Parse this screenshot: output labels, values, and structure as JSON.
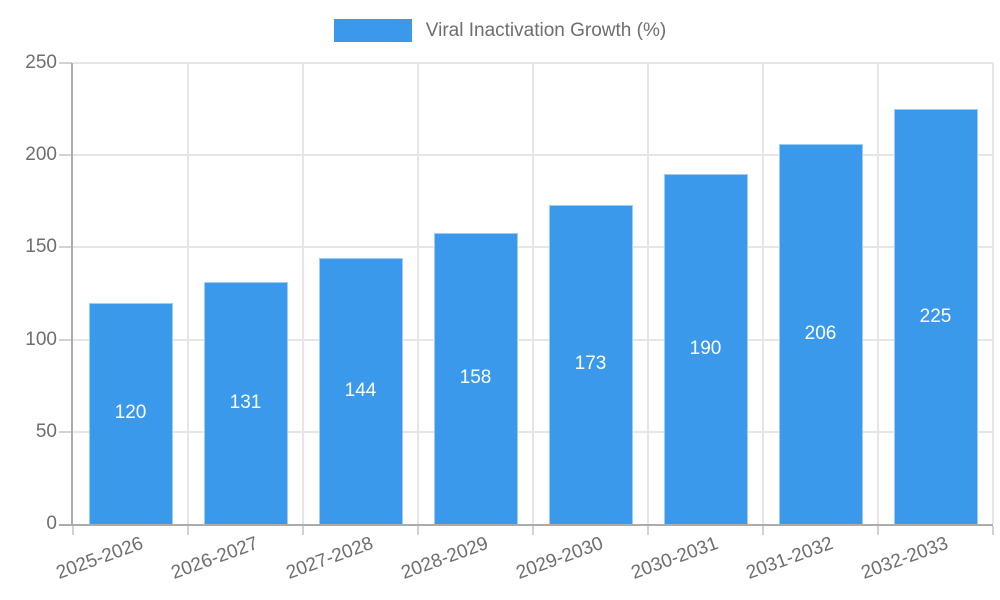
{
  "legend": {
    "label": "Viral Inactivation Growth (%)"
  },
  "colors": {
    "background": "#ffffff",
    "bar_fill": "#3b99ec",
    "bar_border": "#9ecdf4",
    "grid": "#e6e6e6",
    "axis_line": "#ababab",
    "tick": "#d2d2d2",
    "axis_text": "#6e6e6e",
    "value_text": "#ffffff"
  },
  "chart_data": {
    "type": "bar",
    "title": "",
    "categories": [
      "2025-2026",
      "2026-2027",
      "2027-2028",
      "2028-2029",
      "2029-2030",
      "2030-2031",
      "2031-2032",
      "2032-2033"
    ],
    "series": [
      {
        "name": "Viral Inactivation Growth (%)",
        "values": [
          120,
          131,
          144,
          158,
          173,
          190,
          206,
          225
        ]
      }
    ],
    "xlabel": "",
    "ylabel": "",
    "ylim": [
      0,
      250
    ],
    "y_ticks": [
      0,
      50,
      100,
      150,
      200,
      250
    ],
    "grid": true,
    "legend_position": "top-center",
    "value_labels_position": "inside-center",
    "x_tick_rotation_deg": -20
  }
}
